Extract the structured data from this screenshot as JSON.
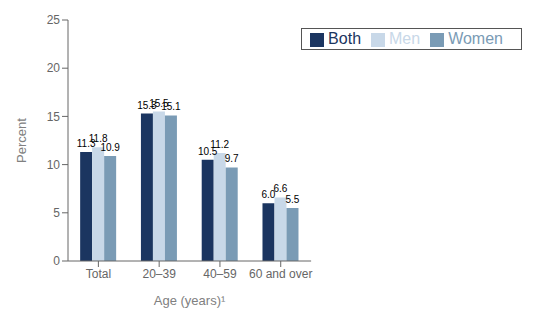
{
  "chart_data": {
    "type": "bar",
    "categories": [
      "Total",
      "20–39",
      "40–59",
      "60 and over"
    ],
    "series": [
      {
        "name": "Both",
        "color": "#1b3560",
        "values": [
          11.3,
          15.3,
          10.5,
          6.0
        ],
        "value_labels": [
          "11.3",
          "15.3",
          "10.5",
          "6.0"
        ]
      },
      {
        "name": "Men",
        "color": "#c8d8e8",
        "values": [
          11.8,
          15.5,
          11.2,
          6.6
        ],
        "value_labels": [
          "11.8",
          "15.5",
          "11.2",
          "6.6"
        ]
      },
      {
        "name": "Women",
        "color": "#7a9bb5",
        "values": [
          10.9,
          15.1,
          9.7,
          5.5
        ],
        "value_labels": [
          "10.9",
          "15.1",
          "9.7",
          "5.5"
        ]
      }
    ],
    "xlabel": "Age (years)¹",
    "ylabel": "Percent",
    "ylim": [
      0,
      25
    ],
    "yticks": [
      0,
      5,
      10,
      15,
      20,
      25
    ],
    "grid": false,
    "legend": "upper right",
    "data_labels": true
  }
}
